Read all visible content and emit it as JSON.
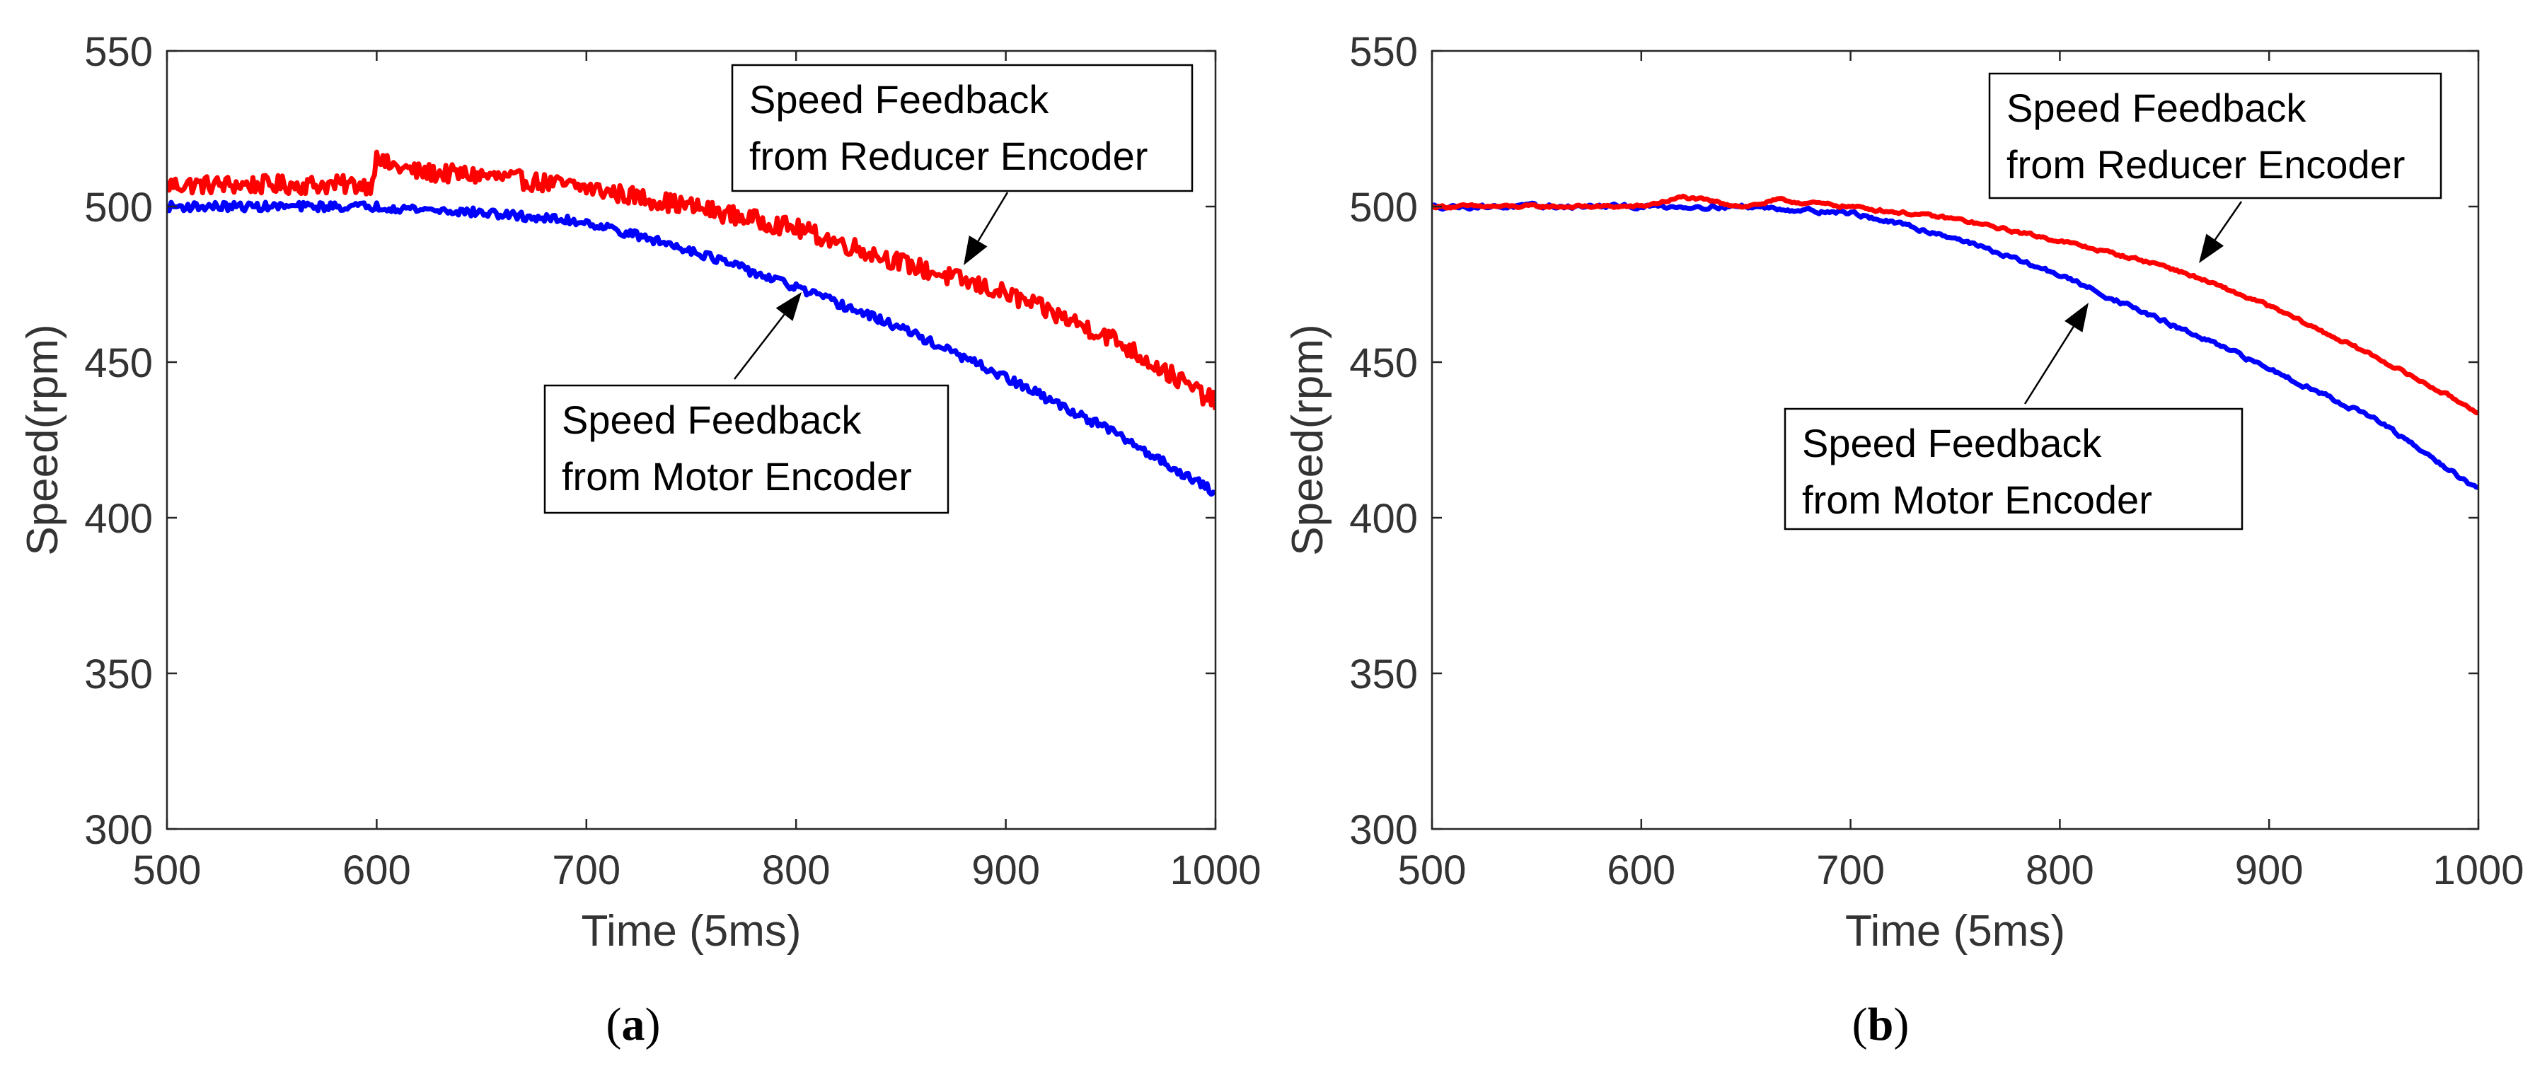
{
  "chart_data": [
    {
      "type": "line",
      "panel_label": [
        "(",
        "a",
        ")"
      ],
      "xlabel": "Time (5ms)",
      "ylabel": "Speed(rpm)",
      "xlim": [
        500,
        1000
      ],
      "ylim": [
        300,
        550
      ],
      "xticks": [
        500,
        600,
        700,
        800,
        900,
        1000
      ],
      "yticks": [
        300,
        350,
        400,
        450,
        500,
        550
      ],
      "series": [
        {
          "name": "Speed Feedback from Reducer Encoder",
          "color": "#ff0000",
          "x": [
            500,
            550,
            598,
            600,
            602,
            620,
            650,
            700,
            750,
            800,
            850,
            880,
            900,
            950,
            1000
          ],
          "y": [
            507,
            507,
            507,
            519,
            514,
            511,
            510,
            506,
            500,
            493,
            482,
            476,
            472,
            458,
            437
          ]
        },
        {
          "name": "Speed Feedback from Motor Encoder",
          "color": "#0000ff",
          "x": [
            500,
            550,
            600,
            650,
            700,
            750,
            800,
            850,
            900,
            950,
            1000
          ],
          "y": [
            500,
            500,
            500,
            498,
            495,
            486,
            474,
            461,
            445,
            428,
            408
          ]
        }
      ],
      "annotations": [
        {
          "lines": [
            "Speed Feedback",
            "from Reducer Encoder"
          ],
          "target_series": "Speed Feedback from Reducer Encoder"
        },
        {
          "lines": [
            "Speed Feedback",
            "from Motor Encoder"
          ],
          "target_series": "Speed Feedback from Motor Encoder"
        }
      ]
    },
    {
      "type": "line",
      "panel_label": [
        "(",
        "b",
        ")"
      ],
      "xlabel": "Time (5ms)",
      "ylabel": "Speed(rpm)",
      "xlim": [
        500,
        1000
      ],
      "ylim": [
        300,
        550
      ],
      "xticks": [
        500,
        600,
        700,
        800,
        900,
        1000
      ],
      "yticks": [
        300,
        350,
        400,
        450,
        500,
        550
      ],
      "series": [
        {
          "name": "Speed Feedback from Reducer Encoder",
          "color": "#ff0000",
          "x": [
            500,
            550,
            600,
            620,
            650,
            665,
            700,
            750,
            800,
            850,
            870,
            900,
            950,
            1000
          ],
          "y": [
            500,
            500,
            500,
            503,
            500,
            502,
            500,
            496,
            489,
            481,
            476,
            468,
            452,
            434
          ]
        },
        {
          "name": "Speed Feedback from Motor Encoder",
          "color": "#0000ff",
          "x": [
            500,
            550,
            600,
            650,
            700,
            750,
            800,
            850,
            900,
            950,
            1000
          ],
          "y": [
            500,
            500,
            500,
            500,
            498,
            490,
            478,
            463,
            448,
            432,
            409
          ]
        }
      ],
      "annotations": [
        {
          "lines": [
            "Speed Feedback",
            "from Reducer Encoder"
          ],
          "target_series": "Speed Feedback from Reducer Encoder"
        },
        {
          "lines": [
            "Speed Feedback",
            "from Motor Encoder"
          ],
          "target_series": "Speed Feedback from Motor Encoder"
        }
      ]
    }
  ]
}
